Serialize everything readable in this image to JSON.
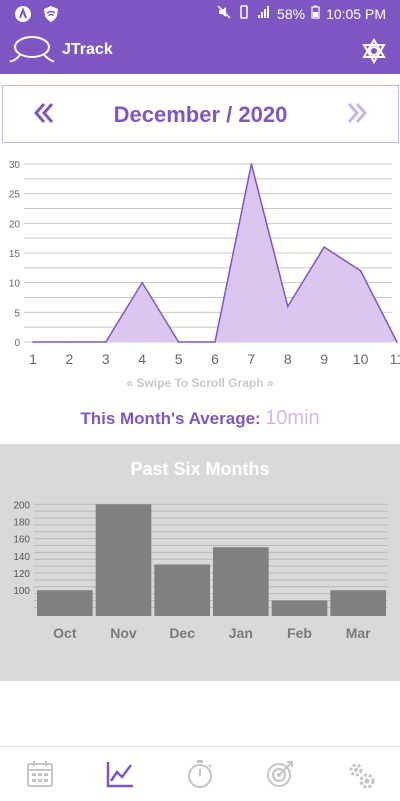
{
  "status_bar": {
    "battery": "58%",
    "time": "10:05 PM",
    "icons": [
      "notification-icon",
      "shield-icon",
      "mute-icon",
      "vibrate-icon",
      "signal-icon",
      "battery-icon"
    ]
  },
  "app_bar": {
    "title": "JTrack",
    "icons": [
      "lasso-logo-icon",
      "settings-icon"
    ]
  },
  "month_nav": {
    "label": "December / 2020",
    "prev_icon": "double-chevron-left-icon",
    "next_icon": "double-chevron-right-icon"
  },
  "chart_data": [
    {
      "type": "area",
      "title": "",
      "x": [
        1,
        2,
        3,
        4,
        5,
        6,
        7,
        8,
        9,
        10,
        11
      ],
      "values": [
        0,
        0,
        0,
        10,
        0,
        0,
        30,
        6,
        16,
        12,
        0
      ],
      "xticks": [
        "1",
        "2",
        "3",
        "4",
        "5",
        "6",
        "7",
        "8",
        "9",
        "10",
        "11"
      ],
      "yticks": [
        "0",
        "5",
        "10",
        "15",
        "20",
        "25",
        "30"
      ],
      "ylim": [
        0,
        30
      ],
      "grid": true,
      "colors": {
        "line": "#7e57c2",
        "fill": "#dcc5ef"
      }
    },
    {
      "type": "bar",
      "title": "Past Six Months",
      "categories": [
        "Oct",
        "Nov",
        "Dec",
        "Jan",
        "Feb",
        "Mar"
      ],
      "values": [
        100,
        200,
        130,
        150,
        88,
        100
      ],
      "yticks": [
        "100",
        "120",
        "140",
        "160",
        "180",
        "200"
      ],
      "ylim": [
        70,
        205
      ],
      "grid": true,
      "colors": {
        "bar": "#808080",
        "background": "#d9d9d9"
      }
    }
  ],
  "swipe_hint": "« Swipe To Scroll Graph »",
  "average": {
    "label": "This Month's Average:",
    "value": "10min"
  },
  "past_months": {
    "title": "Past Six Months"
  },
  "bottom_nav": {
    "items": [
      "calendar-icon",
      "chart-icon",
      "stopwatch-icon",
      "target-icon",
      "settings-gears-icon"
    ],
    "active_index": 1,
    "active_color": "#7e57c2",
    "inactive_color": "#c4c4c4"
  },
  "colors": {
    "primary": "#7e57c2",
    "light_purple": "#dcc5ef",
    "gray_panel": "#d9d9d9",
    "bar_gray": "#808080"
  }
}
